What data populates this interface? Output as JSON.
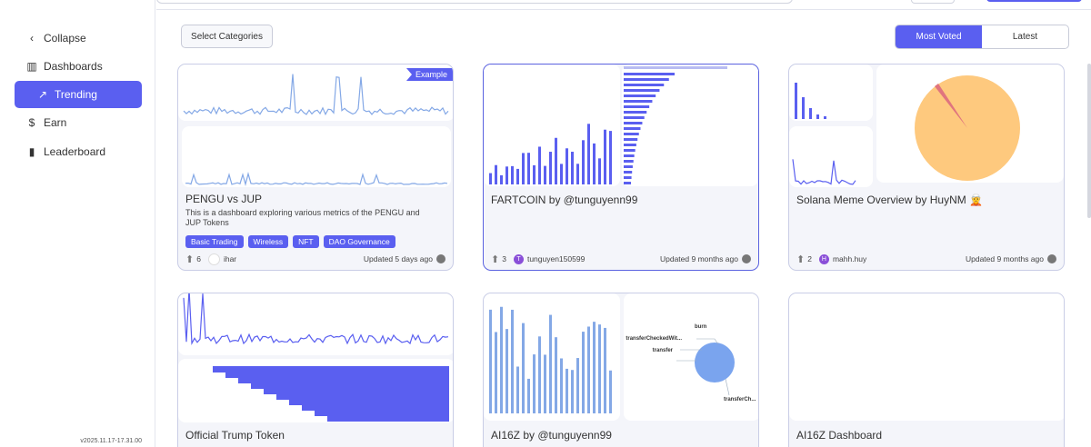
{
  "sidebar": {
    "items": [
      "Collapse",
      "Dashboards",
      "Trending",
      "Earn",
      "Leaderboard"
    ],
    "active": 2,
    "version": "v2025.11.17-17.31.00"
  },
  "toolbar": {
    "select": "Select Categories",
    "tabs": [
      "Most Voted",
      "Latest"
    ],
    "active_tab": 0
  },
  "cards": [
    {
      "title": "PENGU vs JUP",
      "badge": "Example",
      "description": "This is a dashboard exploring various metrics of the PENGU and JUP Tokens",
      "tags": [
        "Basic Trading",
        "Wireless",
        "NFT",
        "DAO Governance"
      ],
      "votes": 6,
      "author": "ihar",
      "updated": "Updated 5 days ago"
    },
    {
      "title": "FARTCOIN by @tunguyenn99",
      "votes": 3,
      "avatar": "T",
      "author": "tunguyen150599",
      "updated": "Updated 9 months ago"
    },
    {
      "title": "Solana Meme Overview by HuyNM 🧝",
      "votes": 2,
      "avatar": "H",
      "author": "mahh.huy",
      "updated": "Updated 9 months ago"
    },
    {
      "title": "Official Trump Token"
    },
    {
      "title": "AI16Z by @tunguyenn99",
      "chart_labels": [
        "burn",
        "transferCheckedWit...",
        "transfer",
        "transferCh..."
      ]
    },
    {
      "title": "AI16Z Dashboard"
    }
  ]
}
